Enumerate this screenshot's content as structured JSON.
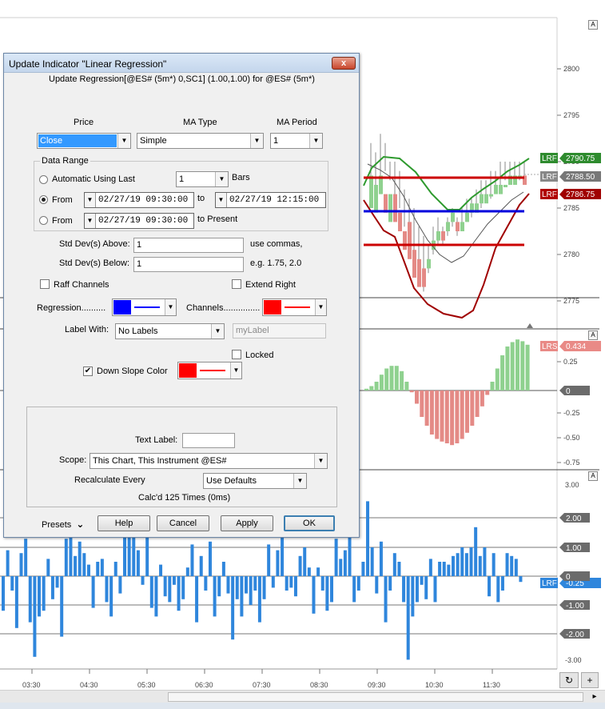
{
  "chart": {
    "price_axis": [
      "2800",
      "2795",
      "2790",
      "2785",
      "2780",
      "2775"
    ],
    "osc_axis": [
      "0.25",
      "-0.25",
      "-0.50",
      "-0.75"
    ],
    "vol_axis": [
      "3.00",
      "2.00",
      "1.00",
      "-1.00",
      "-2.00",
      "-3.00"
    ],
    "time_axis": [
      "03:30",
      "04:30",
      "05:30",
      "06:30",
      "07:30",
      "08:30",
      "09:30",
      "10:30",
      "11:30"
    ],
    "tags": {
      "upper": {
        "label": "LRF",
        "value": "2790.75"
      },
      "mid": {
        "label": "LRF",
        "value": "2788.50"
      },
      "lower": {
        "label": "LRF",
        "value": "2786.75"
      },
      "slope": {
        "label": "LRS",
        "value": "0.434"
      },
      "osc_zero": "0",
      "vol_two": "2.00",
      "vol_one": "1.00",
      "vol_zero": "0",
      "vol_lrf": {
        "label": "LRF",
        "value": "-0.25"
      },
      "vol_neg_one": "-1.00",
      "vol_neg_two": "-2.00"
    },
    "pane_button": "A",
    "reload_icon": "↻",
    "plus_label": "+",
    "scroll_right": "▸",
    "colors": {
      "green_line": "#2e9a2e",
      "red_line": "#cc0000",
      "blue_line": "#0000dd",
      "dark_red_line": "#a00000",
      "up_bar": "#8fd18f",
      "down_bar": "#e48a86",
      "vol_bar": "#2f86dc"
    }
  },
  "dialog": {
    "title": "Update Indicator \"Linear Regression\"",
    "close_label": "x",
    "subtitle": "Update Regression[@ES# (5m*) 0,SC1] (1.00,1.00) for @ES# (5m*)",
    "price_label": "Price",
    "price_value": "Close",
    "ma_type_label": "MA Type",
    "ma_type_value": "Simple",
    "ma_period_label": "MA Period",
    "ma_period_value": "1",
    "data_range_label": "Data Range",
    "auto_label": "Automatic Using Last",
    "auto_bars_value": "1",
    "bars_label": "Bars",
    "from_label": "From",
    "from_date": "02/27/19  09:30:00",
    "to_label": "to",
    "to_date": "02/27/19  12:15:00",
    "from2_label": "From",
    "from2_date": "02/27/19  09:30:00",
    "to_present_label": "to Present",
    "std_above_label": "Std Dev(s) Above:",
    "std_above_value": "1",
    "use_commas": "use commas,",
    "std_below_label": "Std Dev(s) Below:",
    "std_below_value": "1",
    "example": "e.g. 1.75, 2.0",
    "raff_label": "Raff Channels",
    "extend_right_label": "Extend Right",
    "regression_label": "Regression..........",
    "channels_label": "Channels...............",
    "label_with_label": "Label With:",
    "label_with_value": "No Labels",
    "mylabel_placeholder": "myLabel",
    "locked_label": "Locked",
    "down_slope_label": "Down Slope Color",
    "down_slope_checked": "✔",
    "text_label": "Text Label:",
    "scope_label": "Scope:",
    "scope_value": "This Chart, This Instrument @ES#",
    "recalc_label": "Recalculate Every",
    "recalc_value": "Use Defaults",
    "calcd": "Calc'd 125 Times (0ms)",
    "presets_label": "Presets",
    "help": "Help",
    "cancel": "Cancel",
    "apply": "Apply",
    "ok": "OK",
    "colors": {
      "regression": "#0000ff",
      "channels": "#ff0000",
      "down_slope": "#ff0000"
    }
  }
}
